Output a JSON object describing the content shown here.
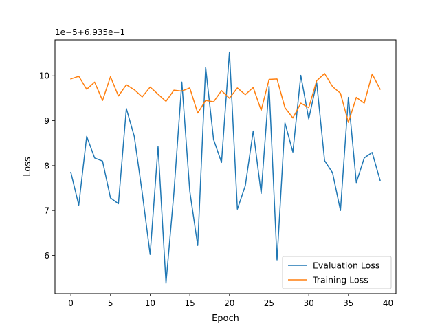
{
  "chart_data": {
    "type": "line",
    "xlabel": "Epoch",
    "ylabel": "Loss",
    "offset_label": "1e−5+6.935e−1",
    "xlim": [
      -2,
      41
    ],
    "ylim": [
      5.15,
      10.8
    ],
    "x_ticks": [
      0,
      5,
      10,
      15,
      20,
      25,
      30,
      35,
      40
    ],
    "y_ticks": [
      6,
      7,
      8,
      9,
      10
    ],
    "grid": false,
    "legend_placement": "lower-right",
    "x": [
      0,
      1,
      2,
      3,
      4,
      5,
      6,
      7,
      8,
      9,
      10,
      11,
      12,
      13,
      14,
      15,
      16,
      17,
      18,
      19,
      20,
      21,
      22,
      23,
      24,
      25,
      26,
      27,
      28,
      29,
      30,
      31,
      32,
      33,
      34,
      35,
      36,
      37,
      38,
      39
    ],
    "series": [
      {
        "name": "Evaluation Loss",
        "color": "#1f77b4",
        "values": [
          7.85,
          7.12,
          8.65,
          8.17,
          8.1,
          7.28,
          7.15,
          9.27,
          8.65,
          7.4,
          6.02,
          8.42,
          5.38,
          7.4,
          9.86,
          7.43,
          6.22,
          10.19,
          8.58,
          8.07,
          10.53,
          7.03,
          7.55,
          8.77,
          7.38,
          9.77,
          5.9,
          8.95,
          8.3,
          10.01,
          9.04,
          9.85,
          8.11,
          7.84,
          7.0,
          9.52,
          7.62,
          8.17,
          8.29,
          7.67
        ]
      },
      {
        "name": "Training Loss",
        "color": "#ff7f0e",
        "values": [
          9.93,
          9.99,
          9.7,
          9.86,
          9.45,
          9.98,
          9.55,
          9.8,
          9.69,
          9.53,
          9.75,
          9.59,
          9.43,
          9.68,
          9.66,
          9.73,
          9.17,
          9.45,
          9.42,
          9.67,
          9.5,
          9.73,
          9.58,
          9.74,
          9.23,
          9.92,
          9.93,
          9.29,
          9.06,
          9.39,
          9.29,
          9.89,
          10.05,
          9.76,
          9.61,
          8.96,
          9.52,
          9.39,
          10.04,
          9.7
        ]
      }
    ]
  }
}
